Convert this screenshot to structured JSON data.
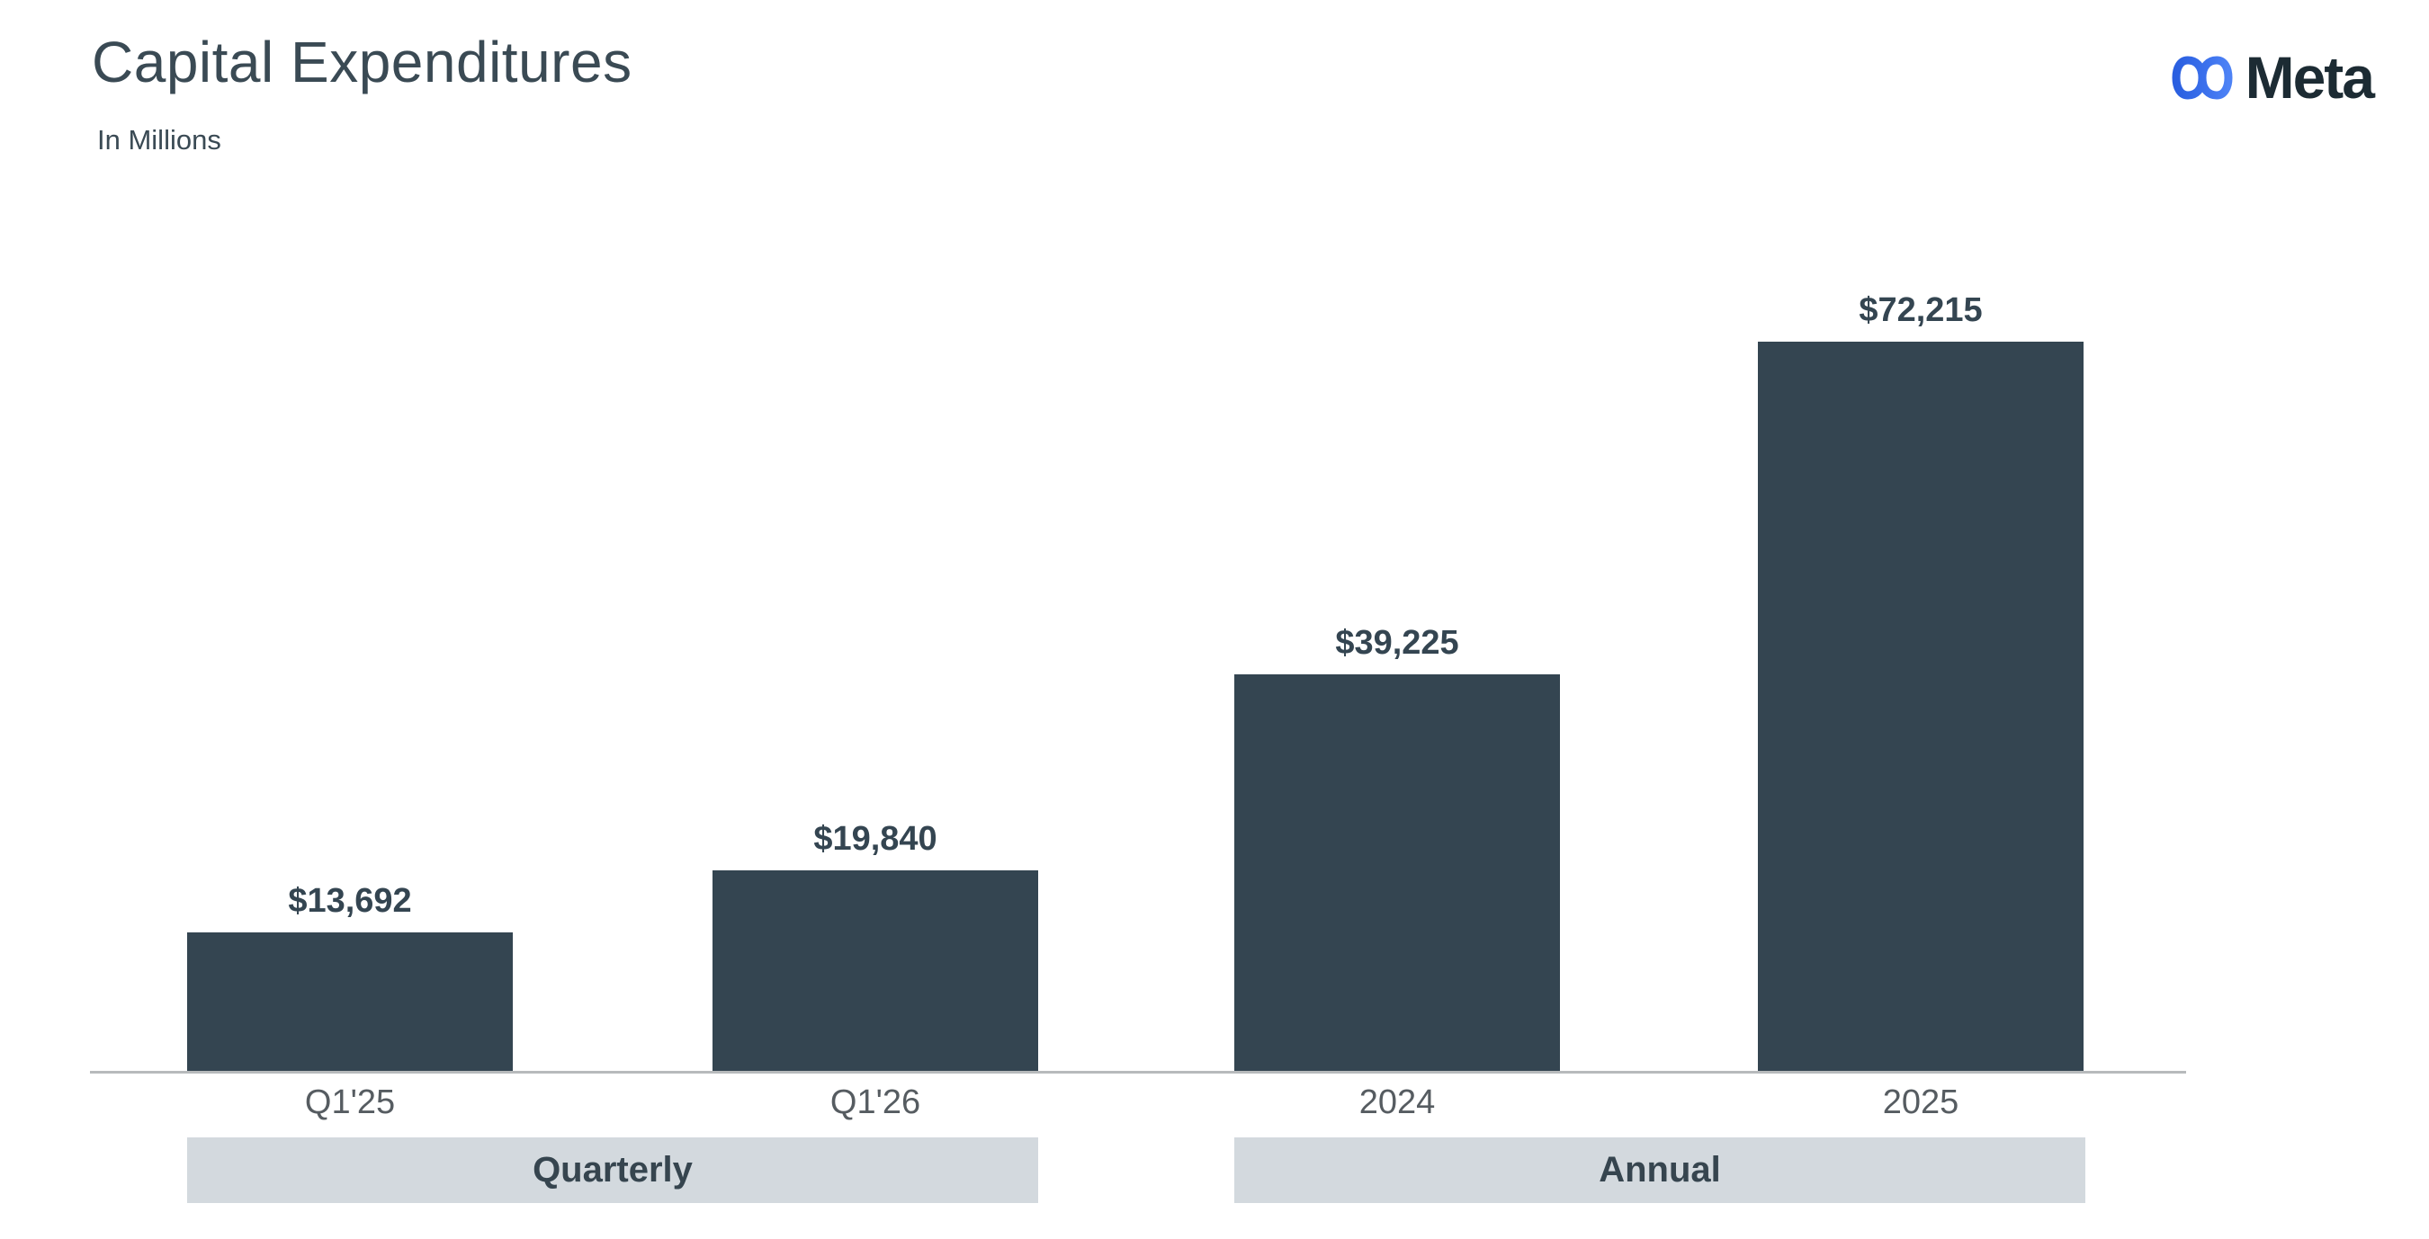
{
  "header": {
    "title": "Capital Expenditures",
    "subtitle": "In Millions",
    "brand_name": "Meta"
  },
  "chart_data": {
    "type": "bar",
    "title": "Capital Expenditures",
    "subtitle": "In Millions",
    "unit": "USD millions",
    "categories": [
      "Q1'25",
      "Q1'26",
      "2024",
      "2025"
    ],
    "values": [
      13692,
      19840,
      39225,
      72215
    ],
    "value_labels": [
      "$13,692",
      "$19,840",
      "$39,225",
      "$72,215"
    ],
    "group_labels": [
      "Quarterly",
      "Annual"
    ],
    "groups": [
      {
        "label": "Quarterly",
        "bars": [
          {
            "category": "Q1'25",
            "value": 13692,
            "value_label": "$13,692"
          },
          {
            "category": "Q1'26",
            "value": 19840,
            "value_label": "$19,840"
          }
        ]
      },
      {
        "label": "Annual",
        "bars": [
          {
            "category": "2024",
            "value": 39225,
            "value_label": "$39,225"
          },
          {
            "category": "2025",
            "value": 72215,
            "value_label": "$72,215"
          }
        ]
      }
    ],
    "max_value": 72215,
    "ylim": [
      0,
      72215
    ],
    "grid": false,
    "legend": false,
    "colors": {
      "bar": "#344551",
      "band": "#d3d9de",
      "axis": "#b7babc",
      "value_label": "#344551",
      "tick_label": "#565c61",
      "band_label": "#36454f",
      "title": "#3a4a54",
      "logo_blue_start": "#2a5fe0",
      "logo_blue_end": "#4d82f5",
      "wordmark": "#1c2b33"
    }
  }
}
